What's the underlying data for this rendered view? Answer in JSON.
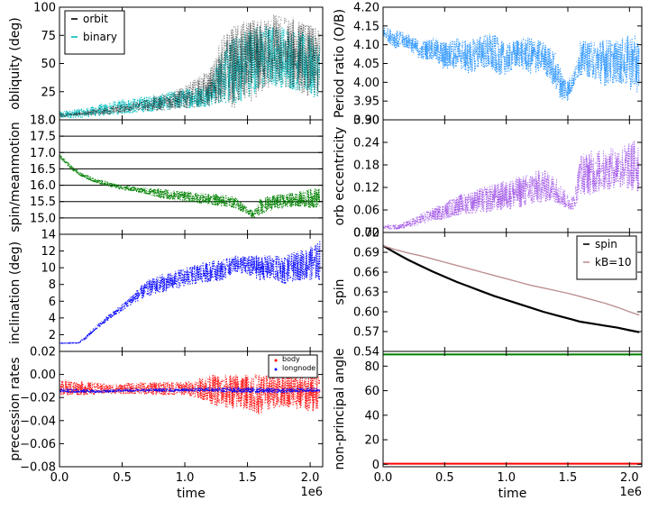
{
  "figure": {
    "shared_xlabel": "time",
    "x_offset_label": "1e6"
  },
  "chart_data": [
    {
      "id": "obliquity",
      "type": "scatter",
      "ylabel": "obliquity (deg)",
      "ylim": [
        0,
        100
      ],
      "yticks": [
        0,
        25,
        50,
        75,
        100
      ],
      "ytick_labels": [
        "0",
        "25",
        "50",
        "75",
        "100"
      ],
      "xlim": [
        0,
        2100000
      ],
      "xticks": [
        0,
        500000,
        1000000,
        1500000,
        2000000
      ],
      "xtick_labels": [],
      "show_xlabel": false,
      "legend": {
        "position": "top-left",
        "frame": true,
        "entries": [
          {
            "label": "orbit",
            "color": "#000000",
            "marker": "dash"
          },
          {
            "label": "binary",
            "color": "#00bfbf",
            "marker": "dash"
          }
        ]
      },
      "series": [
        {
          "name": "binary",
          "color": "#00bfbf",
          "kind": "band",
          "alpha": 0.9,
          "x": [
            0,
            200000,
            400000,
            600000,
            800000,
            1000000,
            1200000,
            1300000,
            1400000,
            1500000,
            1600000,
            1700000,
            1800000,
            1900000,
            2000000,
            2080000
          ],
          "lo": [
            1,
            2,
            4,
            6,
            8,
            10,
            12,
            15,
            12,
            20,
            25,
            30,
            28,
            25,
            20,
            20
          ],
          "hi": [
            8,
            11,
            16,
            20,
            23,
            28,
            33,
            65,
            75,
            83,
            85,
            85,
            84,
            80,
            75,
            70
          ]
        },
        {
          "name": "orbit",
          "color": "#000000",
          "kind": "band",
          "alpha": 0.45,
          "x": [
            0,
            200000,
            400000,
            600000,
            800000,
            1000000,
            1200000,
            1300000,
            1400000,
            1500000,
            1600000,
            1700000,
            1800000,
            1900000,
            2000000,
            2080000
          ],
          "lo": [
            2,
            4,
            5,
            8,
            8,
            10,
            12,
            15,
            10,
            15,
            20,
            30,
            28,
            25,
            20,
            18
          ],
          "hi": [
            6,
            8,
            12,
            16,
            22,
            30,
            45,
            75,
            85,
            88,
            90,
            95,
            93,
            90,
            85,
            80
          ]
        }
      ]
    },
    {
      "id": "period",
      "type": "scatter",
      "ylabel": "Period ratio (O/B)",
      "ylim": [
        3.9,
        4.2
      ],
      "yticks": [
        3.9,
        3.95,
        4.0,
        4.05,
        4.1,
        4.15,
        4.2
      ],
      "ytick_labels": [
        "3.90",
        "3.95",
        "4.00",
        "4.05",
        "4.10",
        "4.15",
        "4.20"
      ],
      "xlim": [
        0,
        2100000
      ],
      "xticks": [
        0,
        500000,
        1000000,
        1500000,
        2000000
      ],
      "xtick_labels": [],
      "show_xlabel": false,
      "legend": null,
      "series": [
        {
          "name": "period ratio",
          "color": "#1e8fff",
          "kind": "band",
          "alpha": 0.85,
          "x": [
            0,
            100000,
            200000,
            300000,
            400000,
            500000,
            600000,
            700000,
            800000,
            900000,
            1000000,
            1100000,
            1200000,
            1300000,
            1400000,
            1450000,
            1500000,
            1550000,
            1600000,
            1700000,
            1800000,
            1900000,
            2000000,
            2080000
          ],
          "lo": [
            4.12,
            4.09,
            4.09,
            4.06,
            4.06,
            4.03,
            4.04,
            4.02,
            4.04,
            4.02,
            4.02,
            4.04,
            4.02,
            4.03,
            3.98,
            3.95,
            3.95,
            3.99,
            4.02,
            4.01,
            3.99,
            4.0,
            3.98,
            3.97
          ],
          "hi": [
            4.15,
            4.14,
            4.13,
            4.11,
            4.12,
            4.11,
            4.12,
            4.11,
            4.13,
            4.13,
            4.1,
            4.12,
            4.12,
            4.11,
            4.08,
            4.03,
            4.01,
            4.03,
            4.11,
            4.11,
            4.12,
            4.11,
            4.13,
            4.12
          ]
        }
      ]
    },
    {
      "id": "spin_meanmotion",
      "type": "line",
      "ylabel": "spin/meanmotion",
      "ylim": [
        14.5,
        18.0
      ],
      "yticks": [
        15.0,
        15.5,
        16.0,
        16.5,
        17.0,
        17.5,
        18.0
      ],
      "ytick_labels": [
        "15.0",
        "15.5",
        "16.0",
        "16.5",
        "17.0",
        "17.5",
        "18.0"
      ],
      "xlim": [
        0,
        2100000
      ],
      "xticks": [
        0,
        500000,
        1000000,
        1500000,
        2000000
      ],
      "xtick_labels": [],
      "show_xlabel": false,
      "legend": null,
      "hlines": [
        15.0,
        15.5,
        16.0,
        16.5,
        17.0,
        17.5,
        18.0
      ],
      "hline_color": "#000000",
      "series": [
        {
          "name": "spin/meanmotion",
          "color": "#008000",
          "kind": "band",
          "alpha": 1,
          "x": [
            0,
            100000,
            200000,
            300000,
            400000,
            500000,
            600000,
            700000,
            800000,
            900000,
            1000000,
            1100000,
            1200000,
            1300000,
            1400000,
            1500000,
            1550000,
            1600000,
            1700000,
            1800000,
            1900000,
            2000000,
            2080000
          ],
          "lo": [
            16.85,
            16.45,
            16.2,
            16.05,
            15.95,
            15.85,
            15.8,
            15.72,
            15.6,
            15.55,
            15.5,
            15.45,
            15.4,
            15.35,
            15.3,
            15.1,
            14.98,
            15.1,
            15.25,
            15.3,
            15.35,
            15.3,
            15.3
          ],
          "hi": [
            16.95,
            16.6,
            16.35,
            16.2,
            16.1,
            16.0,
            15.97,
            15.92,
            15.9,
            15.85,
            15.82,
            15.78,
            15.75,
            15.72,
            15.65,
            15.35,
            15.2,
            15.6,
            15.7,
            15.75,
            15.8,
            15.9,
            15.95
          ]
        }
      ]
    },
    {
      "id": "eccentricity",
      "type": "scatter",
      "ylabel": "orb eccentricity",
      "ylim": [
        0.0,
        0.3
      ],
      "yticks": [
        0.0,
        0.06,
        0.12,
        0.18,
        0.24,
        0.3
      ],
      "ytick_labels": [
        "0.00",
        "0.06",
        "0.12",
        "0.18",
        "0.24",
        "0.30"
      ],
      "xlim": [
        0,
        2100000
      ],
      "xticks": [
        0,
        500000,
        1000000,
        1500000,
        2000000
      ],
      "xtick_labels": [],
      "show_xlabel": false,
      "legend": null,
      "series": [
        {
          "name": "eccentricity",
          "color": "#8a2be2",
          "kind": "band",
          "alpha": 0.6,
          "x": [
            0,
            150000,
            250000,
            300000,
            400000,
            500000,
            600000,
            700000,
            800000,
            900000,
            1000000,
            1100000,
            1200000,
            1300000,
            1400000,
            1500000,
            1550000,
            1600000,
            1700000,
            1800000,
            1900000,
            2000000,
            2080000
          ],
          "lo": [
            0.008,
            0.008,
            0.015,
            0.02,
            0.03,
            0.035,
            0.045,
            0.05,
            0.05,
            0.055,
            0.06,
            0.065,
            0.07,
            0.08,
            0.08,
            0.06,
            0.06,
            0.1,
            0.1,
            0.11,
            0.12,
            0.11,
            0.1
          ],
          "hi": [
            0.02,
            0.025,
            0.04,
            0.05,
            0.065,
            0.08,
            0.1,
            0.11,
            0.12,
            0.13,
            0.14,
            0.15,
            0.16,
            0.17,
            0.15,
            0.1,
            0.1,
            0.21,
            0.22,
            0.22,
            0.23,
            0.24,
            0.26
          ]
        }
      ]
    },
    {
      "id": "inclination",
      "type": "scatter",
      "ylabel": "inclination (deg)",
      "ylim": [
        0,
        14
      ],
      "yticks": [
        2,
        4,
        6,
        8,
        10,
        12,
        14
      ],
      "ytick_labels": [
        "2",
        "4",
        "6",
        "8",
        "10",
        "12",
        "14"
      ],
      "xlim": [
        0,
        2100000
      ],
      "xticks": [
        0,
        500000,
        1000000,
        1500000,
        2000000
      ],
      "xtick_labels": [],
      "show_xlabel": false,
      "legend": null,
      "series": [
        {
          "name": "inclination",
          "color": "#0000ff",
          "kind": "band",
          "alpha": 0.9,
          "x": [
            0,
            150000,
            200000,
            300000,
            400000,
            500000,
            600000,
            700000,
            800000,
            900000,
            1000000,
            1100000,
            1200000,
            1300000,
            1400000,
            1500000,
            1600000,
            1700000,
            1800000,
            1900000,
            2000000,
            2080000
          ],
          "lo": [
            0.9,
            0.9,
            1.3,
            2.7,
            3.8,
            4.8,
            5.8,
            6.5,
            7.0,
            7.3,
            7.8,
            8.0,
            8.3,
            8.5,
            9.5,
            9.0,
            8.5,
            8.5,
            8.0,
            8.5,
            8.5,
            8.5
          ],
          "hi": [
            1.1,
            1.1,
            1.8,
            3.2,
            4.5,
            5.7,
            7.2,
            8.5,
            9.2,
            9.5,
            10.0,
            10.5,
            10.8,
            11.0,
            11.5,
            11.5,
            11.5,
            11.5,
            11.5,
            12.0,
            12.5,
            13.3
          ]
        }
      ]
    },
    {
      "id": "spin",
      "type": "line",
      "ylabel": "spin",
      "ylim": [
        0.54,
        0.72
      ],
      "yticks": [
        0.54,
        0.57,
        0.6,
        0.63,
        0.66,
        0.69,
        0.72
      ],
      "ytick_labels": [
        "0.54",
        "0.57",
        "0.60",
        "0.63",
        "0.66",
        "0.69",
        "0.72"
      ],
      "xlim": [
        0,
        2100000
      ],
      "xticks": [
        0,
        500000,
        1000000,
        1500000,
        2000000
      ],
      "xtick_labels": [],
      "show_xlabel": false,
      "legend": {
        "position": "top-right",
        "frame": true,
        "entries": [
          {
            "label": "spin",
            "color": "#000000",
            "marker": "dash"
          },
          {
            "label": "kB=10",
            "color": "#bc8f8f",
            "marker": "dash"
          }
        ]
      },
      "series": [
        {
          "name": "spin",
          "color": "#000000",
          "kind": "line",
          "width": 2.2,
          "x": [
            0,
            100000,
            200000,
            300000,
            400000,
            500000,
            600000,
            700000,
            800000,
            900000,
            1000000,
            1100000,
            1200000,
            1300000,
            1400000,
            1500000,
            1600000,
            1700000,
            1800000,
            1900000,
            2000000,
            2080000
          ],
          "y": [
            0.7,
            0.689,
            0.679,
            0.67,
            0.661,
            0.653,
            0.645,
            0.638,
            0.631,
            0.624,
            0.618,
            0.612,
            0.606,
            0.6,
            0.595,
            0.59,
            0.585,
            0.582,
            0.579,
            0.576,
            0.572,
            0.569
          ]
        },
        {
          "name": "kB=10",
          "color": "#bc8f8f",
          "kind": "line",
          "width": 1.4,
          "x": [
            0,
            100000,
            200000,
            300000,
            400000,
            500000,
            600000,
            700000,
            800000,
            900000,
            1000000,
            1100000,
            1200000,
            1300000,
            1400000,
            1500000,
            1600000,
            1700000,
            1800000,
            1900000,
            2000000,
            2080000
          ],
          "y": [
            0.7,
            0.694,
            0.689,
            0.685,
            0.68,
            0.675,
            0.67,
            0.665,
            0.66,
            0.655,
            0.65,
            0.645,
            0.64,
            0.636,
            0.632,
            0.628,
            0.623,
            0.618,
            0.613,
            0.607,
            0.6,
            0.595
          ]
        }
      ]
    },
    {
      "id": "precession",
      "type": "scatter",
      "ylabel": "precession rates",
      "ylim": [
        -0.08,
        0.02
      ],
      "yticks": [
        -0.08,
        -0.06,
        -0.04,
        -0.02,
        0.0,
        0.02
      ],
      "ytick_labels": [
        "−0.08",
        "−0.06",
        "−0.04",
        "−0.02",
        "0.00",
        "0.02"
      ],
      "xlim": [
        0,
        2100000
      ],
      "xticks": [
        0,
        500000,
        1000000,
        1500000,
        2000000
      ],
      "xtick_labels": [
        "0.0",
        "0.5",
        "1.0",
        "1.5",
        "2.0"
      ],
      "show_xlabel": true,
      "legend": {
        "position": "top-right",
        "frame": true,
        "small": true,
        "entries": [
          {
            "label": "body",
            "color": "#ff0000",
            "marker": "dot"
          },
          {
            "label": "longnode",
            "color": "#0000ff",
            "marker": "dot"
          }
        ]
      },
      "series": [
        {
          "name": "body",
          "color": "#ff0000",
          "kind": "band",
          "alpha": 0.85,
          "x": [
            0,
            200000,
            400000,
            600000,
            800000,
            1000000,
            1100000,
            1200000,
            1300000,
            1400000,
            1500000,
            1600000,
            1700000,
            1800000,
            1900000,
            2000000,
            2080000
          ],
          "lo": [
            -0.018,
            -0.018,
            -0.017,
            -0.017,
            -0.018,
            -0.018,
            -0.02,
            -0.025,
            -0.03,
            -0.03,
            -0.03,
            -0.035,
            -0.03,
            -0.028,
            -0.03,
            -0.035,
            -0.028
          ],
          "hi": [
            -0.004,
            -0.006,
            -0.008,
            -0.007,
            -0.006,
            -0.006,
            -0.004,
            0.0,
            0.0,
            0.001,
            0.0,
            0.001,
            0.0,
            0.002,
            0.001,
            0.0,
            0.0
          ]
        },
        {
          "name": "longnode",
          "color": "#0000ff",
          "kind": "band",
          "alpha": 0.9,
          "x": [
            0,
            300000,
            600000,
            900000,
            1200000,
            1500000,
            1800000,
            2080000
          ],
          "lo": [
            -0.016,
            -0.016,
            -0.015,
            -0.015,
            -0.015,
            -0.016,
            -0.016,
            -0.015
          ],
          "hi": [
            -0.012,
            -0.013,
            -0.012,
            -0.012,
            -0.011,
            -0.011,
            -0.012,
            -0.011
          ]
        }
      ]
    },
    {
      "id": "nonprincipal",
      "type": "line",
      "ylabel": "non-principal angle",
      "ylim": [
        -2,
        92
      ],
      "yticks": [
        0,
        20,
        40,
        60,
        80
      ],
      "ytick_labels": [
        "0",
        "20",
        "40",
        "60",
        "80"
      ],
      "xlim": [
        0,
        2100000
      ],
      "xticks": [
        0,
        500000,
        1000000,
        1500000,
        2000000
      ],
      "xtick_labels": [
        "0.0",
        "0.5",
        "1.0",
        "1.5",
        "2.0"
      ],
      "show_xlabel": true,
      "legend": null,
      "series": [
        {
          "name": "green",
          "color": "#008000",
          "kind": "line",
          "width": 2,
          "x": [
            0,
            2100000
          ],
          "y": [
            89.5,
            89.5
          ]
        },
        {
          "name": "red",
          "color": "#ff0000",
          "kind": "line",
          "width": 2,
          "x": [
            0,
            2100000
          ],
          "y": [
            0.5,
            0.5
          ]
        }
      ]
    }
  ]
}
